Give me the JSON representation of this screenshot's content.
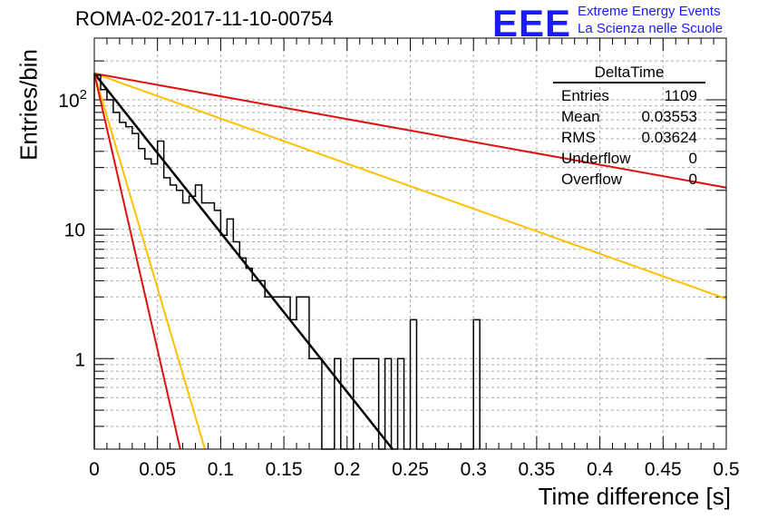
{
  "header": {
    "title": "ROMA-02-2017-11-10-00754",
    "logo_letters": "EEE",
    "logo_line1": "Extreme Energy Events",
    "logo_line2": "La Scienza nelle Scuole"
  },
  "stats": {
    "name": "DeltaTime",
    "rows": [
      {
        "label": "Entries",
        "value": "1109"
      },
      {
        "label": "Mean",
        "value": "0.03553"
      },
      {
        "label": "RMS",
        "value": "0.03624"
      },
      {
        "label": "Underflow",
        "value": "0"
      },
      {
        "label": "Overflow",
        "value": "0"
      }
    ]
  },
  "chart_data": {
    "type": "histogram",
    "title": "ROMA-02-2017-11-10-00754",
    "xlabel": "Time difference [s]",
    "ylabel": "Entries/bin",
    "xlim": [
      0,
      0.5
    ],
    "ylim": [
      0.2,
      300
    ],
    "y_scale": "log",
    "grid": true,
    "x_ticks": [
      "0",
      "0.05",
      "0.1",
      "0.15",
      "0.2",
      "0.25",
      "0.3",
      "0.35",
      "0.4",
      "0.45",
      "0.5"
    ],
    "y_ticks": [
      "1",
      "10",
      "10^2"
    ],
    "bin_width": 0.005,
    "bins": [
      {
        "x": 0.0,
        "y": 155
      },
      {
        "x": 0.005,
        "y": 120
      },
      {
        "x": 0.01,
        "y": 100
      },
      {
        "x": 0.015,
        "y": 80
      },
      {
        "x": 0.02,
        "y": 67
      },
      {
        "x": 0.025,
        "y": 62
      },
      {
        "x": 0.03,
        "y": 55
      },
      {
        "x": 0.035,
        "y": 42
      },
      {
        "x": 0.04,
        "y": 35
      },
      {
        "x": 0.045,
        "y": 32
      },
      {
        "x": 0.05,
        "y": 48
      },
      {
        "x": 0.055,
        "y": 25
      },
      {
        "x": 0.06,
        "y": 22
      },
      {
        "x": 0.065,
        "y": 20
      },
      {
        "x": 0.07,
        "y": 16
      },
      {
        "x": 0.075,
        "y": 18
      },
      {
        "x": 0.08,
        "y": 22
      },
      {
        "x": 0.085,
        "y": 16
      },
      {
        "x": 0.09,
        "y": 16
      },
      {
        "x": 0.095,
        "y": 14
      },
      {
        "x": 0.1,
        "y": 9
      },
      {
        "x": 0.105,
        "y": 12
      },
      {
        "x": 0.11,
        "y": 8
      },
      {
        "x": 0.115,
        "y": 6
      },
      {
        "x": 0.12,
        "y": 5
      },
      {
        "x": 0.125,
        "y": 4
      },
      {
        "x": 0.13,
        "y": 4
      },
      {
        "x": 0.135,
        "y": 3
      },
      {
        "x": 0.14,
        "y": 3
      },
      {
        "x": 0.145,
        "y": 3
      },
      {
        "x": 0.15,
        "y": 3
      },
      {
        "x": 0.155,
        "y": 2
      },
      {
        "x": 0.16,
        "y": 3
      },
      {
        "x": 0.165,
        "y": 3
      },
      {
        "x": 0.17,
        "y": 1
      },
      {
        "x": 0.175,
        "y": 1
      },
      {
        "x": 0.18,
        "y": 0
      },
      {
        "x": 0.185,
        "y": 0
      },
      {
        "x": 0.19,
        "y": 1
      },
      {
        "x": 0.195,
        "y": 0
      },
      {
        "x": 0.2,
        "y": 0
      },
      {
        "x": 0.205,
        "y": 1
      },
      {
        "x": 0.21,
        "y": 1
      },
      {
        "x": 0.215,
        "y": 1
      },
      {
        "x": 0.22,
        "y": 1
      },
      {
        "x": 0.225,
        "y": 0
      },
      {
        "x": 0.23,
        "y": 1
      },
      {
        "x": 0.235,
        "y": 0
      },
      {
        "x": 0.24,
        "y": 1
      },
      {
        "x": 0.245,
        "y": 0
      },
      {
        "x": 0.25,
        "y": 2
      },
      {
        "x": 0.255,
        "y": 0
      },
      {
        "x": 0.26,
        "y": 0
      },
      {
        "x": 0.265,
        "y": 0
      },
      {
        "x": 0.27,
        "y": 0
      },
      {
        "x": 0.275,
        "y": 0
      },
      {
        "x": 0.28,
        "y": 0
      },
      {
        "x": 0.285,
        "y": 0
      },
      {
        "x": 0.29,
        "y": 0
      },
      {
        "x": 0.295,
        "y": 0
      },
      {
        "x": 0.3,
        "y": 2
      }
    ],
    "fit_lines": [
      {
        "color": "#000000",
        "x": [
          0.0,
          0.236
        ],
        "y": [
          160,
          0.2
        ]
      },
      {
        "color": "#ffc000",
        "x": [
          0.0,
          0.5
        ],
        "y": [
          160,
          2.9
        ]
      },
      {
        "color": "#ffc000",
        "x": [
          0.0,
          0.0875
        ],
        "y": [
          160,
          0.2
        ]
      },
      {
        "color": "#e01010",
        "x": [
          0.0,
          0.5
        ],
        "y": [
          160,
          21
        ]
      },
      {
        "color": "#e01010",
        "x": [
          0.0,
          0.068
        ],
        "y": [
          160,
          0.2
        ]
      }
    ]
  }
}
